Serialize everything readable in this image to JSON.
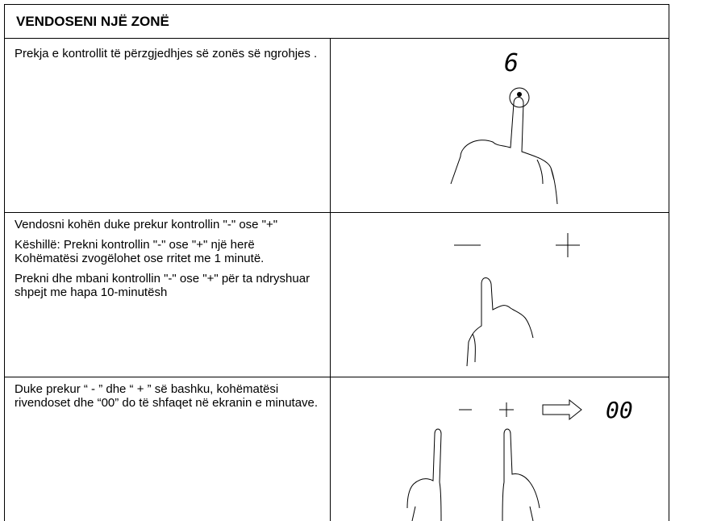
{
  "header": {
    "title": "VENDOSENI NJË ZONË"
  },
  "rows": [
    {
      "text": [
        "Prekja e kontrollit të përzgjedhjes së zonës së ngrohjes ."
      ],
      "display": "6"
    },
    {
      "text": [
        "Vendosni kohën duke prekur kontrollin \"-\" ose \"+\"",
        "Këshillë: Prekni kontrollin \"-\" ose \"+\" një herë Kohëmatësi zvogëlohet ose rritet me 1 minutë.",
        "Prekni dhe mbani kontrollin \"-\" ose \"+\" për ta ndryshuar shpejt me hapa 10-minutësh"
      ]
    },
    {
      "text": [
        "Duke prekur “ - ” dhe “ + ” së bashku, kohëmatësi rivendoset dhe “00” do të shfaqet në ekranin e minutave."
      ],
      "display": "00"
    }
  ]
}
